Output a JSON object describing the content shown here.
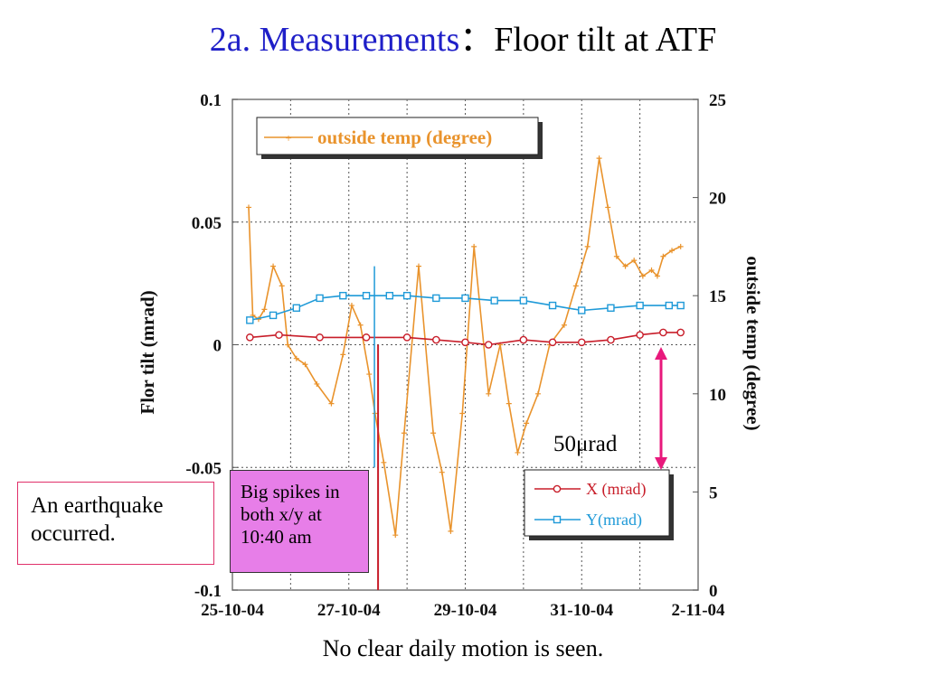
{
  "slide": {
    "title_part1": "2a. Measurements",
    "title_part2": "：Floor tilt at ATF",
    "caption": "No clear daily motion is seen."
  },
  "annotations": {
    "earthquake_note": "An earthquake occurred.",
    "spike_note": "Big spikes in both x/y at 10:40 am",
    "range_label": "50μrad"
  },
  "colors": {
    "temp": "#e9932c",
    "x": "#c81e2a",
    "y": "#1f9ad8",
    "arrow": "#e8197c",
    "spike_box": "#e77ee8"
  },
  "chart_data": {
    "type": "line",
    "x_ticks": [
      "25-10-04",
      "27-10-04",
      "29-10-04",
      "31-10-04",
      "2-11-04"
    ],
    "xlim": [
      0,
      8
    ],
    "x_unit": "days since 25-10-04",
    "y_left_label": "Flor tilt (mrad)",
    "y_left_ticks": [
      "0.1",
      "0.05",
      "0",
      "-0.05",
      "-0.1"
    ],
    "ylim_left": [
      -0.1,
      0.1
    ],
    "y_right_label": "outside temp (degree)",
    "y_right_ticks": [
      "25",
      "20",
      "15",
      "10",
      "5",
      "0"
    ],
    "ylim_right": [
      0,
      25
    ],
    "grid": true,
    "legends": [
      {
        "position": "top-left",
        "entries": [
          "outside temp (degree)"
        ]
      },
      {
        "position": "bottom-right",
        "entries": [
          "X (mrad)",
          "Y(mrad)"
        ]
      }
    ],
    "series": [
      {
        "name": "outside temp (degree)",
        "axis": "right",
        "color": "#e9932c",
        "marker": "plus",
        "x": [
          0.28,
          0.35,
          0.45,
          0.55,
          0.7,
          0.85,
          0.95,
          1.1,
          1.25,
          1.45,
          1.7,
          1.9,
          2.05,
          2.2,
          2.35,
          2.45,
          2.6,
          2.8,
          2.95,
          3.2,
          3.45,
          3.6,
          3.75,
          3.95,
          4.15,
          4.4,
          4.6,
          4.75,
          4.9,
          5.05,
          5.25,
          5.45,
          5.7,
          5.9,
          6.1,
          6.3,
          6.45,
          6.6,
          6.75,
          6.9,
          7.05,
          7.2,
          7.3,
          7.4,
          7.55,
          7.7
        ],
        "y": [
          19.5,
          14.0,
          13.8,
          14.3,
          16.5,
          15.5,
          12.5,
          11.8,
          11.5,
          10.5,
          9.5,
          12.0,
          14.5,
          13.5,
          11.0,
          9.0,
          6.5,
          2.8,
          8.0,
          16.5,
          8.0,
          6.0,
          3.0,
          9.0,
          17.5,
          10.0,
          12.5,
          9.5,
          7.0,
          8.5,
          10.0,
          12.5,
          13.5,
          15.5,
          17.5,
          22.0,
          19.5,
          17.0,
          16.5,
          16.8,
          16.0,
          16.3,
          16.0,
          17.0,
          17.3,
          17.5
        ]
      },
      {
        "name": "X (mrad)",
        "axis": "left",
        "color": "#c81e2a",
        "marker": "circle",
        "x": [
          0.3,
          0.8,
          1.5,
          2.3,
          3.0,
          3.5,
          4.0,
          4.4,
          5.0,
          5.5,
          6.0,
          6.5,
          7.0,
          7.4,
          7.7
        ],
        "y": [
          0.003,
          0.004,
          0.003,
          0.003,
          0.003,
          0.002,
          0.001,
          0.0,
          0.002,
          0.001,
          0.001,
          0.002,
          0.004,
          0.005,
          0.005
        ]
      },
      {
        "name": "Y(mrad)",
        "axis": "left",
        "color": "#1f9ad8",
        "marker": "square",
        "x": [
          0.3,
          0.7,
          1.1,
          1.5,
          1.9,
          2.3,
          2.7,
          3.0,
          3.5,
          4.0,
          4.5,
          5.0,
          5.5,
          6.0,
          6.5,
          7.0,
          7.5,
          7.7
        ],
        "y": [
          0.01,
          0.012,
          0.015,
          0.019,
          0.02,
          0.02,
          0.02,
          0.02,
          0.019,
          0.019,
          0.018,
          0.018,
          0.016,
          0.014,
          0.015,
          0.016,
          0.016,
          0.016
        ]
      }
    ],
    "events": [
      {
        "label": "Big spikes in both x/y at 10:40 am",
        "x": 2.44,
        "x_spike_range": [
          -0.1,
          0.0
        ],
        "y_spike_range": [
          -0.05,
          0.032
        ]
      }
    ]
  }
}
